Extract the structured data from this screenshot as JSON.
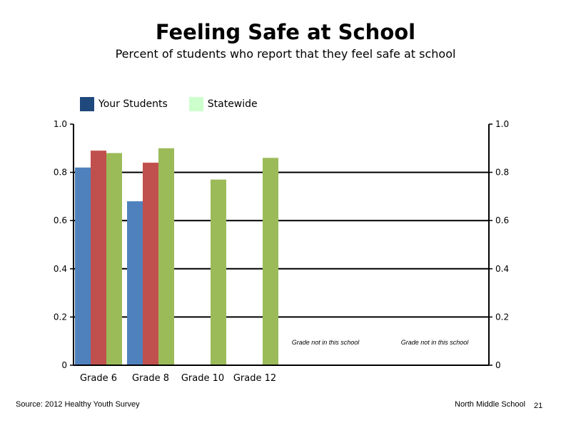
{
  "title": "Feeling Safe at School",
  "subtitle": "Percent of students who report that they feel safe at school",
  "legend": [
    {
      "label": "Your Students",
      "color": "#1f497d"
    },
    {
      "label": "Statewide",
      "color": "#ccffcc"
    }
  ],
  "chart_data": {
    "type": "bar",
    "categories": [
      "Grade 6",
      "Grade 8",
      "Grade 10",
      "Grade 12"
    ],
    "series": [
      {
        "values": [
          0.82,
          0.68,
          null,
          null
        ],
        "color": "#4f81bd"
      },
      {
        "values": [
          0.89,
          0.84,
          null,
          null
        ],
        "color": "#c0504d"
      },
      {
        "values": [
          0.88,
          0.9,
          0.77,
          0.86
        ],
        "color": "#9bbb59"
      }
    ],
    "ylim": [
      0,
      1.0
    ],
    "y_ticks_left": [
      "0",
      "0.2",
      "0.4",
      "0.6",
      "0.8",
      "1.0"
    ],
    "y_ticks_right": [
      "0",
      "0.2",
      "0.4",
      "0.6",
      "0.8",
      "1.0"
    ],
    "grid": true
  },
  "notes": [
    "Grade not in this school",
    "Grade not in this school"
  ],
  "footer": {
    "source": "Source: 2012 Healthy Youth Survey",
    "school": "North Middle  School",
    "page": "21"
  }
}
